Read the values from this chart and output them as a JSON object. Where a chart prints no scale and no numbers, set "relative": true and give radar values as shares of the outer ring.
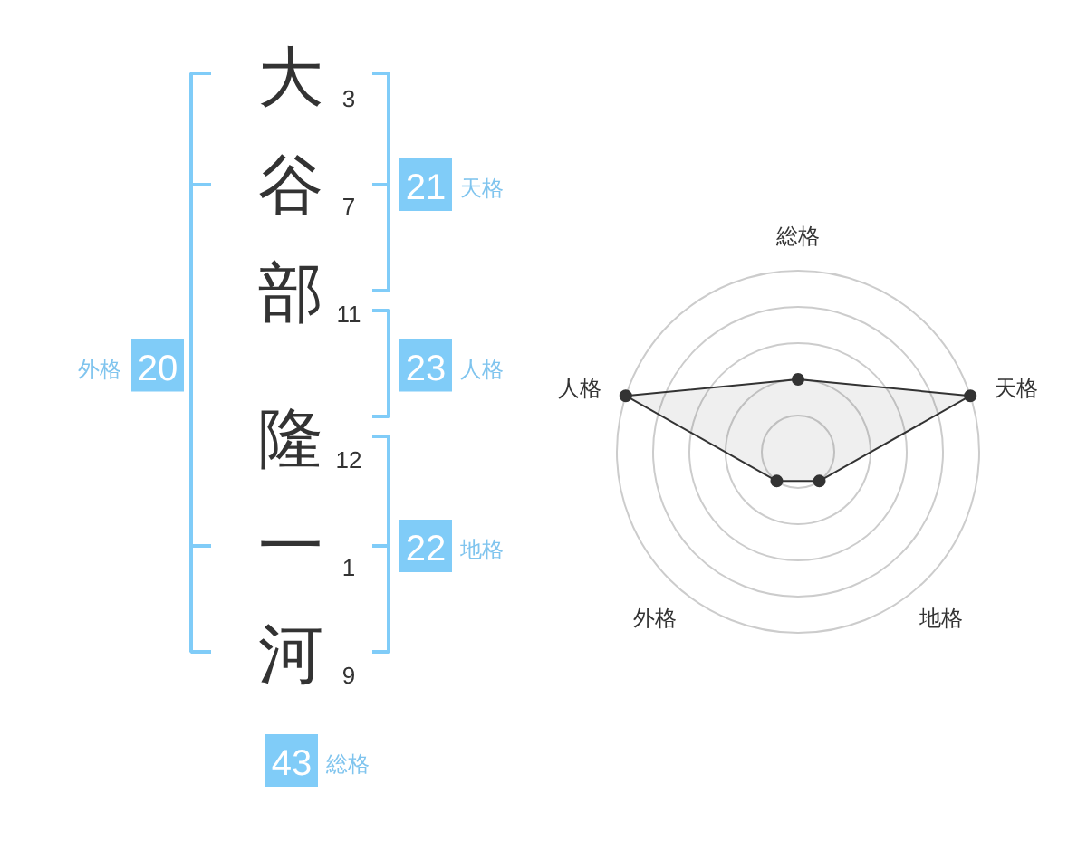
{
  "chart_data": [
    {
      "type": "other",
      "categories": [
        "大",
        "谷",
        "部",
        "隆",
        "一",
        "河"
      ],
      "values": [
        3,
        7,
        11,
        12,
        1,
        9
      ],
      "data_labels": true,
      "annotations": [
        "21",
        "天格",
        "23",
        "人格",
        "22",
        "地格",
        "20",
        "外格",
        "43",
        "総格"
      ]
    },
    {
      "type": "radar",
      "categories": [
        "総格",
        "天格",
        "地格",
        "外格",
        "人格"
      ],
      "relative": true,
      "grid": true,
      "marker": "circle",
      "series": [
        {
          "color": "#333333",
          "values": [
            0.4,
            1,
            0.2,
            0.2,
            1
          ]
        }
      ]
    }
  ]
}
